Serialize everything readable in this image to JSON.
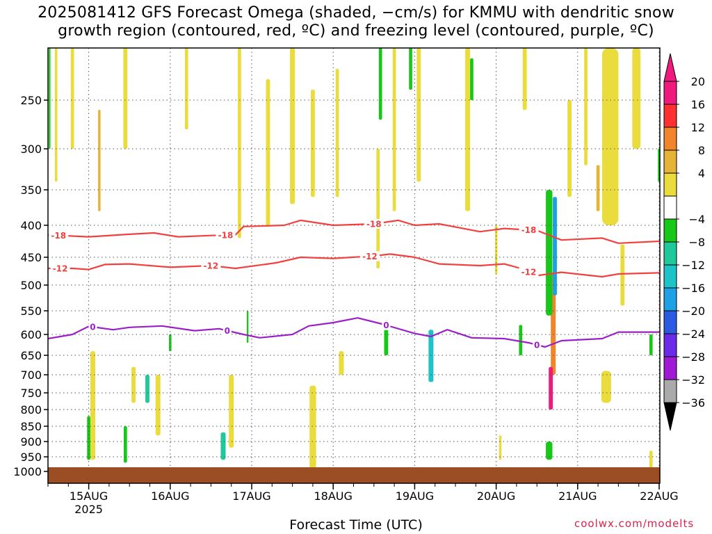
{
  "title_line1": "2025081412 GFS Forecast Omega (shaded, −cm/s) for KMMU with dendritic snow",
  "title_line2": "growth region (contoured, red, ºC) and freezing level (contoured, purple, ºC)",
  "watermark": "coolwx.com/modelts",
  "chart_data": {
    "type": "heatmap",
    "title": "2025081412 GFS Forecast Omega (shaded, −cm/s) for KMMU with dendritic snow growth region (contoured, red, ºC) and freezing level (contoured, purple, ºC)",
    "xlabel": "Forecast Time (UTC)",
    "ylabel": "",
    "x_range": [
      "2025-08-14T12Z",
      "2025-08-22T00Z"
    ],
    "x_ticks": [
      {
        "label": "15AUG",
        "sub": "2025",
        "day": 0.5
      },
      {
        "label": "16AUG",
        "day": 1.5
      },
      {
        "label": "17AUG",
        "day": 2.5
      },
      {
        "label": "18AUG",
        "day": 3.5
      },
      {
        "label": "19AUG",
        "day": 4.5
      },
      {
        "label": "20AUG",
        "day": 5.5
      },
      {
        "label": "21AUG",
        "day": 6.5
      },
      {
        "label": "22AUG",
        "day": 7.5
      }
    ],
    "y_axis": "pressure (hPa), inverted",
    "y_range": [
      1000,
      200
    ],
    "y_ticks": [
      250,
      300,
      350,
      400,
      450,
      500,
      550,
      600,
      650,
      700,
      750,
      800,
      850,
      900,
      950,
      1000
    ],
    "grid": true,
    "colorbar": {
      "labels": [
        "20",
        "16",
        "12",
        "8",
        "4",
        "−4",
        "−8",
        "−12",
        "−16",
        "−20",
        "−24",
        "−28",
        "−32",
        "−36"
      ],
      "colors": [
        "#f0197d",
        "#ff3030",
        "#f2852b",
        "#e5b437",
        "#eadc3c",
        "#ffffff",
        "#18c818",
        "#1fc99b",
        "#1ec3c7",
        "#1da0e6",
        "#2a5be0",
        "#6a2ae8",
        "#a01ad6",
        "#aaaaaa"
      ],
      "top_arrow": "#f0197d",
      "bottom_arrow": "#000000"
    },
    "contours": [
      {
        "label": "-18",
        "color": "#f24040",
        "label_days": [
          0.13,
          2.18,
          4.0,
          5.9
        ],
        "points": [
          [
            0,
            415
          ],
          [
            0.5,
            418
          ],
          [
            1.0,
            414
          ],
          [
            1.3,
            412
          ],
          [
            1.6,
            418
          ],
          [
            2.0,
            416
          ],
          [
            2.3,
            415
          ],
          [
            2.4,
            402
          ],
          [
            2.9,
            400
          ],
          [
            3.1,
            393
          ],
          [
            3.5,
            400
          ],
          [
            4.0,
            398
          ],
          [
            4.3,
            393
          ],
          [
            4.5,
            400
          ],
          [
            4.8,
            398
          ],
          [
            5.3,
            410
          ],
          [
            5.6,
            405
          ],
          [
            6.0,
            408
          ],
          [
            6.3,
            423
          ],
          [
            6.8,
            420
          ],
          [
            7.0,
            428
          ],
          [
            7.5,
            425
          ]
        ]
      },
      {
        "label": "-12",
        "color": "#f24040",
        "label_days": [
          0.15,
          2.0,
          3.95,
          5.9
        ],
        "points": [
          [
            0,
            470
          ],
          [
            0.3,
            470
          ],
          [
            0.5,
            472
          ],
          [
            0.7,
            463
          ],
          [
            1.0,
            462
          ],
          [
            1.5,
            468
          ],
          [
            2.0,
            465
          ],
          [
            2.3,
            470
          ],
          [
            2.8,
            460
          ],
          [
            3.1,
            450
          ],
          [
            3.5,
            452
          ],
          [
            4.0,
            448
          ],
          [
            4.2,
            445
          ],
          [
            4.5,
            450
          ],
          [
            4.8,
            462
          ],
          [
            5.3,
            465
          ],
          [
            5.6,
            462
          ],
          [
            5.8,
            470
          ],
          [
            6.0,
            483
          ],
          [
            6.3,
            477
          ],
          [
            6.8,
            485
          ],
          [
            7.0,
            480
          ],
          [
            7.5,
            478
          ]
        ]
      },
      {
        "label": "0",
        "color": "#9a1fc8",
        "label_days": [
          0.55,
          2.2,
          4.15,
          6.0
        ],
        "points": [
          [
            0,
            610
          ],
          [
            0.3,
            600
          ],
          [
            0.5,
            583
          ],
          [
            0.8,
            590
          ],
          [
            1.0,
            585
          ],
          [
            1.4,
            582
          ],
          [
            1.8,
            592
          ],
          [
            2.1,
            588
          ],
          [
            2.4,
            600
          ],
          [
            2.6,
            608
          ],
          [
            3.0,
            600
          ],
          [
            3.2,
            582
          ],
          [
            3.5,
            575
          ],
          [
            3.8,
            565
          ],
          [
            4.1,
            578
          ],
          [
            4.5,
            598
          ],
          [
            4.7,
            605
          ],
          [
            4.9,
            590
          ],
          [
            5.2,
            608
          ],
          [
            5.6,
            610
          ],
          [
            5.9,
            620
          ],
          [
            6.1,
            630
          ],
          [
            6.3,
            615
          ],
          [
            6.8,
            610
          ],
          [
            7.0,
            595
          ],
          [
            7.5,
            595
          ]
        ]
      }
    ],
    "shaded_regions": [
      {
        "day": 0.1,
        "p0": 200,
        "p1": 340,
        "w": 0.03,
        "omega": 4
      },
      {
        "day": 0.3,
        "p0": 200,
        "p1": 300,
        "w": 0.04,
        "omega": 4
      },
      {
        "day": 0.63,
        "p0": 260,
        "p1": 380,
        "w": 0.03,
        "omega": 8
      },
      {
        "day": 0.95,
        "p0": 200,
        "p1": 300,
        "w": 0.05,
        "omega": 4
      },
      {
        "day": 1.7,
        "p0": 200,
        "p1": 280,
        "w": 0.04,
        "omega": 4
      },
      {
        "day": 2.35,
        "p0": 200,
        "p1": 420,
        "w": 0.04,
        "omega": 4
      },
      {
        "day": 2.7,
        "p0": 230,
        "p1": 400,
        "w": 0.05,
        "omega": 4
      },
      {
        "day": 3.0,
        "p0": 200,
        "p1": 370,
        "w": 0.06,
        "omega": 4
      },
      {
        "day": 3.25,
        "p0": 240,
        "p1": 360,
        "w": 0.05,
        "omega": 4
      },
      {
        "day": 3.55,
        "p0": 220,
        "p1": 360,
        "w": 0.04,
        "omega": 4
      },
      {
        "day": 4.25,
        "p0": 200,
        "p1": 380,
        "w": 0.04,
        "omega": 4
      },
      {
        "day": 4.05,
        "p0": 300,
        "p1": 470,
        "w": 0.04,
        "omega": 4
      },
      {
        "day": 4.55,
        "p0": 200,
        "p1": 340,
        "w": 0.05,
        "omega": 4
      },
      {
        "day": 5.15,
        "p0": 200,
        "p1": 380,
        "w": 0.06,
        "omega": 4
      },
      {
        "day": 5.5,
        "p0": 400,
        "p1": 480,
        "w": 0.03,
        "omega": 4
      },
      {
        "day": 5.85,
        "p0": 200,
        "p1": 260,
        "w": 0.05,
        "omega": 4
      },
      {
        "day": 6.9,
        "p0": 200,
        "p1": 400,
        "w": 0.2,
        "omega": 4
      },
      {
        "day": 7.22,
        "p0": 200,
        "p1": 300,
        "w": 0.1,
        "omega": 4
      },
      {
        "day": 7.05,
        "p0": 430,
        "p1": 540,
        "w": 0.05,
        "omega": 4
      },
      {
        "day": 6.4,
        "p0": 250,
        "p1": 360,
        "w": 0.05,
        "omega": 4
      },
      {
        "day": 6.6,
        "p0": 200,
        "p1": 320,
        "w": 0.04,
        "omega": 4
      },
      {
        "day": 0.55,
        "p0": 640,
        "p1": 960,
        "w": 0.06,
        "omega": 4
      },
      {
        "day": 1.05,
        "p0": 680,
        "p1": 780,
        "w": 0.05,
        "omega": 4
      },
      {
        "day": 1.35,
        "p0": 700,
        "p1": 880,
        "w": 0.06,
        "omega": 4
      },
      {
        "day": 2.25,
        "p0": 700,
        "p1": 920,
        "w": 0.06,
        "omega": 4
      },
      {
        "day": 3.25,
        "p0": 730,
        "p1": 990,
        "w": 0.08,
        "omega": 4
      },
      {
        "day": 3.6,
        "p0": 640,
        "p1": 700,
        "w": 0.06,
        "omega": 4
      },
      {
        "day": 5.55,
        "p0": 880,
        "p1": 960,
        "w": 0.03,
        "omega": 4
      },
      {
        "day": 6.85,
        "p0": 690,
        "p1": 780,
        "w": 0.12,
        "omega": 4
      },
      {
        "day": 7.4,
        "p0": 930,
        "p1": 990,
        "w": 0.04,
        "omega": 4
      },
      {
        "day": 6.2,
        "p0": 480,
        "p1": 700,
        "w": 0.06,
        "omega": 12
      },
      {
        "day": 6.17,
        "p0": 680,
        "p1": 800,
        "w": 0.05,
        "omega": 20
      },
      {
        "day": 6.75,
        "p0": 320,
        "p1": 380,
        "w": 0.04,
        "omega": 8
      },
      {
        "day": 0.02,
        "p0": 200,
        "p1": 300,
        "w": 0.02,
        "omega": -4
      },
      {
        "day": 4.08,
        "p0": 200,
        "p1": 270,
        "w": 0.04,
        "omega": -4
      },
      {
        "day": 4.45,
        "p0": 200,
        "p1": 240,
        "w": 0.04,
        "omega": -4
      },
      {
        "day": 5.2,
        "p0": 210,
        "p1": 250,
        "w": 0.04,
        "omega": -4
      },
      {
        "day": 0.5,
        "p0": 820,
        "p1": 960,
        "w": 0.04,
        "omega": -4
      },
      {
        "day": 0.95,
        "p0": 850,
        "p1": 970,
        "w": 0.04,
        "omega": -4
      },
      {
        "day": 1.22,
        "p0": 700,
        "p1": 780,
        "w": 0.05,
        "omega": -8
      },
      {
        "day": 1.5,
        "p0": 600,
        "p1": 640,
        "w": 0.03,
        "omega": -4
      },
      {
        "day": 2.15,
        "p0": 870,
        "p1": 960,
        "w": 0.06,
        "omega": -8
      },
      {
        "day": 2.45,
        "p0": 550,
        "p1": 620,
        "w": 0.02,
        "omega": -4
      },
      {
        "day": 4.15,
        "p0": 570,
        "p1": 650,
        "w": 0.05,
        "omega": -4
      },
      {
        "day": 4.7,
        "p0": 590,
        "p1": 720,
        "w": 0.06,
        "omega": -12
      },
      {
        "day": 6.15,
        "p0": 350,
        "p1": 560,
        "w": 0.08,
        "omega": -4
      },
      {
        "day": 6.22,
        "p0": 360,
        "p1": 520,
        "w": 0.05,
        "omega": -16
      },
      {
        "day": 6.15,
        "p0": 900,
        "p1": 960,
        "w": 0.08,
        "omega": -4
      },
      {
        "day": 5.8,
        "p0": 580,
        "p1": 650,
        "w": 0.04,
        "omega": -4
      },
      {
        "day": 7.4,
        "p0": 600,
        "p1": 650,
        "w": 0.04,
        "omega": -4
      },
      {
        "day": 7.5,
        "p0": 300,
        "p1": 340,
        "w": 0.03,
        "omega": -4
      }
    ]
  }
}
